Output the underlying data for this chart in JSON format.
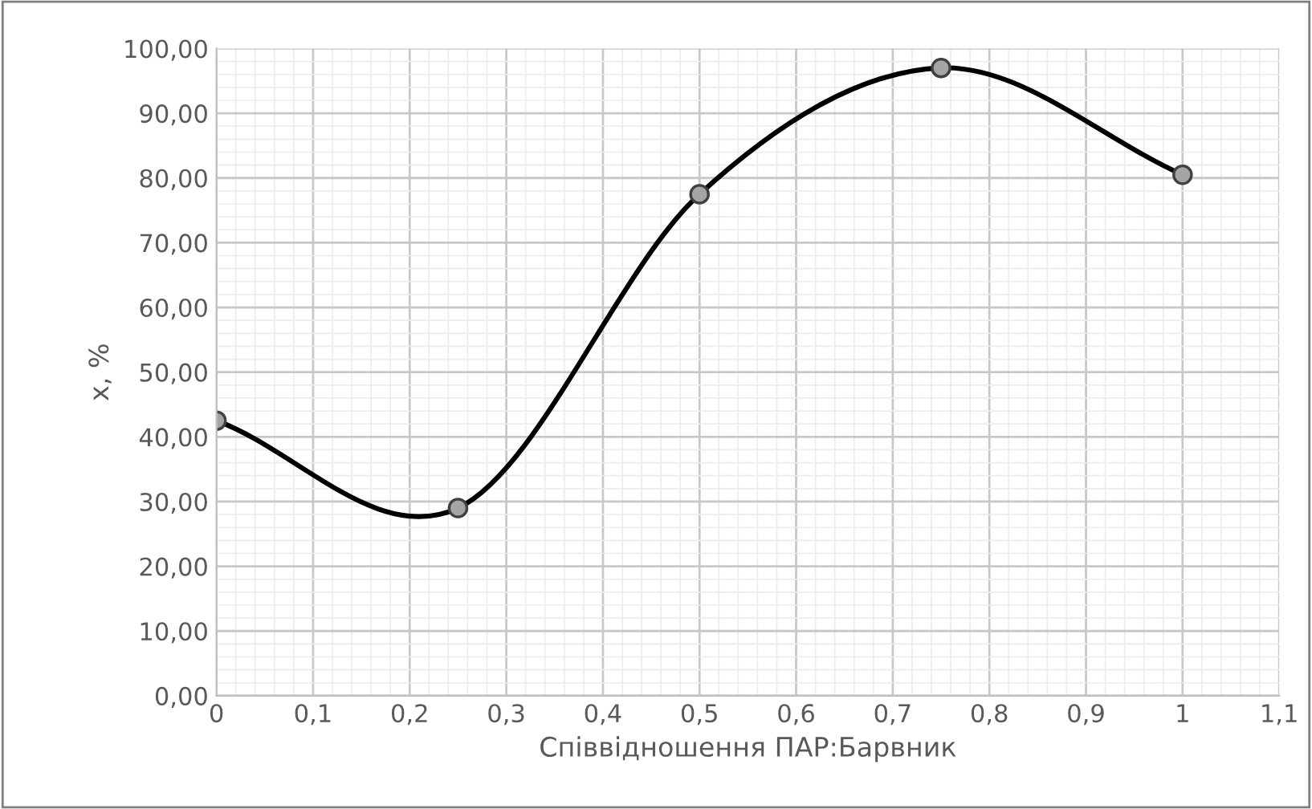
{
  "chart_data": {
    "type": "line",
    "xlabel": "Співвідношення ПАР:Барвник",
    "ylabel": "x, %",
    "x": [
      0,
      0.25,
      0.5,
      0.75,
      1
    ],
    "series": [
      {
        "color": "#000000",
        "values": [
          42.5,
          29,
          77.5,
          97,
          80.5
        ]
      }
    ],
    "xlim": [
      0,
      1.1
    ],
    "ylim": [
      0,
      100
    ],
    "xticks": [
      {
        "value": 0,
        "label": "0"
      },
      {
        "value": 0.1,
        "label": "0,1"
      },
      {
        "value": 0.2,
        "label": "0,2"
      },
      {
        "value": 0.3,
        "label": "0,3"
      },
      {
        "value": 0.4,
        "label": "0,4"
      },
      {
        "value": 0.5,
        "label": "0,5"
      },
      {
        "value": 0.6,
        "label": "0,6"
      },
      {
        "value": 0.7,
        "label": "0,7"
      },
      {
        "value": 0.8,
        "label": "0,8"
      },
      {
        "value": 0.9,
        "label": "0,9"
      },
      {
        "value": 1,
        "label": "1"
      },
      {
        "value": 1.1,
        "label": "1,1"
      }
    ],
    "yticks": [
      {
        "value": 0,
        "label": "0,00"
      },
      {
        "value": 10,
        "label": "10,00"
      },
      {
        "value": 20,
        "label": "20,00"
      },
      {
        "value": 30,
        "label": "30,00"
      },
      {
        "value": 40,
        "label": "40,00"
      },
      {
        "value": 50,
        "label": "50,00"
      },
      {
        "value": 60,
        "label": "60,00"
      },
      {
        "value": 70,
        "label": "70,00"
      },
      {
        "value": 80,
        "label": "80,00"
      },
      {
        "value": 90,
        "label": "90,00"
      },
      {
        "value": 100,
        "label": "100,00"
      }
    ],
    "grid": true,
    "marker": "circle",
    "line_style": "solid",
    "legend": false
  }
}
